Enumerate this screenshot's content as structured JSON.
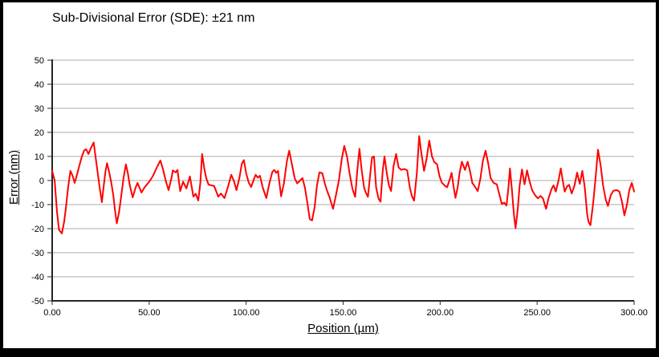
{
  "chart_data": {
    "type": "line",
    "title": "Sub-Divisional Error (SDE): ±21 nm",
    "xlabel": "Position (µm)",
    "ylabel": "Error (nm)",
    "xlim": [
      0,
      300
    ],
    "ylim": [
      -50,
      50
    ],
    "grid": "horizontal",
    "legend": "none",
    "x_tick_values": [
      0,
      50,
      100,
      150,
      200,
      250,
      300
    ],
    "x_tick_labels": [
      "0.00",
      "50.00",
      "100.00",
      "150.00",
      "200.00",
      "250.00",
      "300.00"
    ],
    "y_tick_values": [
      50,
      40,
      30,
      20,
      10,
      0,
      -10,
      -20,
      -30,
      -40,
      -50
    ],
    "y_tick_labels": [
      "50",
      "40",
      "30",
      "20",
      "10",
      "0",
      "-10",
      "-20",
      "-30",
      "-40",
      "-50"
    ],
    "colors": {
      "line": "#ff0000",
      "grid": "#ababab",
      "axis": "#262626",
      "text": "#000000",
      "background": "#ffffff",
      "frame": "#000000"
    },
    "series": [
      {
        "name": "Sub-divisional error",
        "points": [
          [
            0,
            4
          ],
          [
            1.3,
            0
          ],
          [
            2.5,
            -13
          ],
          [
            3.5,
            -20.5
          ],
          [
            5,
            -22
          ],
          [
            6.2,
            -17
          ],
          [
            7.2,
            -10.5
          ],
          [
            8.2,
            -3
          ],
          [
            9.4,
            4
          ],
          [
            10.5,
            2
          ],
          [
            11.6,
            -1
          ],
          [
            13,
            3
          ],
          [
            13.8,
            5.5
          ],
          [
            15.3,
            10
          ],
          [
            16.5,
            12.5
          ],
          [
            17.5,
            13
          ],
          [
            18.7,
            11
          ],
          [
            20,
            13.5
          ],
          [
            21.4,
            15.8
          ],
          [
            22.5,
            9
          ],
          [
            23.5,
            3
          ],
          [
            24.5,
            -3
          ],
          [
            25.6,
            -9
          ],
          [
            26.6,
            -2
          ],
          [
            27.5,
            4
          ],
          [
            28.3,
            7.2
          ],
          [
            29.5,
            3
          ],
          [
            30.5,
            -1
          ],
          [
            31.5,
            -6
          ],
          [
            32.5,
            -13
          ],
          [
            33.3,
            -17.8
          ],
          [
            34.5,
            -13
          ],
          [
            35.5,
            -7
          ],
          [
            36.8,
            1
          ],
          [
            38,
            6.7
          ],
          [
            39,
            3
          ],
          [
            40,
            -2
          ],
          [
            41.5,
            -7
          ],
          [
            43,
            -3
          ],
          [
            44,
            -1
          ],
          [
            45,
            -3
          ],
          [
            46,
            -5
          ],
          [
            47.5,
            -3
          ],
          [
            49,
            -1.5
          ],
          [
            50.5,
            0
          ],
          [
            52,
            2
          ],
          [
            54,
            5.5
          ],
          [
            55.8,
            8.3
          ],
          [
            57,
            5
          ],
          [
            58.5,
            0
          ],
          [
            60,
            -4
          ],
          [
            61.5,
            1
          ],
          [
            62.2,
            4.2
          ],
          [
            63.7,
            3.4
          ],
          [
            64.6,
            4.4
          ],
          [
            66,
            -4.4
          ],
          [
            67.5,
            -0.5
          ],
          [
            69.2,
            -3.3
          ],
          [
            71,
            1.7
          ],
          [
            72.8,
            -6.7
          ],
          [
            74,
            -5.5
          ],
          [
            75.3,
            -8.3
          ],
          [
            76.4,
            -1
          ],
          [
            77.3,
            11
          ],
          [
            78.4,
            5
          ],
          [
            79.4,
            1
          ],
          [
            80.6,
            -1.7
          ],
          [
            82,
            -2
          ],
          [
            83.5,
            -2.3
          ],
          [
            85.6,
            -6.7
          ],
          [
            87,
            -5.4
          ],
          [
            88.8,
            -7.3
          ],
          [
            90.5,
            -3
          ],
          [
            92.3,
            2.4
          ],
          [
            93.6,
            0
          ],
          [
            95,
            -4
          ],
          [
            96.5,
            1
          ],
          [
            97.8,
            7
          ],
          [
            98.8,
            8.5
          ],
          [
            100,
            3
          ],
          [
            101.3,
            -0.8
          ],
          [
            102.6,
            -2.7
          ],
          [
            104,
            0.5
          ],
          [
            104.9,
            2.4
          ],
          [
            106,
            1.2
          ],
          [
            107.1,
            2
          ],
          [
            108.6,
            -3
          ],
          [
            110.4,
            -7.3
          ],
          [
            112,
            -1
          ],
          [
            113.5,
            3.6
          ],
          [
            114.5,
            4.4
          ],
          [
            115.5,
            3.2
          ],
          [
            116.4,
            4
          ],
          [
            118,
            -6.6
          ],
          [
            119.5,
            -1
          ],
          [
            121,
            8
          ],
          [
            122.2,
            12.4
          ],
          [
            123.5,
            7
          ],
          [
            125,
            1
          ],
          [
            126.3,
            -1.2
          ],
          [
            127.8,
            0
          ],
          [
            129,
            1
          ],
          [
            130.3,
            -3
          ],
          [
            131.5,
            -9
          ],
          [
            132.8,
            -16
          ],
          [
            134,
            -16.6
          ],
          [
            135.3,
            -11
          ],
          [
            136.5,
            -2
          ],
          [
            137.8,
            3.4
          ],
          [
            139.3,
            3
          ],
          [
            140.5,
            -1
          ],
          [
            141.6,
            -4
          ],
          [
            143,
            -7
          ],
          [
            144.8,
            -11.8
          ],
          [
            146.3,
            -6
          ],
          [
            147.8,
            0
          ],
          [
            149.3,
            9
          ],
          [
            150.6,
            14.4
          ],
          [
            152,
            10
          ],
          [
            153.3,
            3
          ],
          [
            154.8,
            -3.5
          ],
          [
            156.2,
            -6.8
          ],
          [
            157.3,
            4
          ],
          [
            158.4,
            13.2
          ],
          [
            159.6,
            4
          ],
          [
            160.8,
            -3
          ],
          [
            161.8,
            -5.2
          ],
          [
            162.8,
            -6.8
          ],
          [
            164,
            3
          ],
          [
            164.9,
            9.6
          ],
          [
            165.9,
            10
          ],
          [
            167,
            -3
          ],
          [
            168.3,
            -7.6
          ],
          [
            169.3,
            -8.8
          ],
          [
            170.4,
            4
          ],
          [
            171.3,
            10
          ],
          [
            172.5,
            3
          ],
          [
            173.6,
            -2
          ],
          [
            174.7,
            -4.4
          ],
          [
            176,
            6
          ],
          [
            177.3,
            11
          ],
          [
            178.6,
            5.4
          ],
          [
            180,
            4.4
          ],
          [
            181.6,
            4.8
          ],
          [
            183,
            4.2
          ],
          [
            184.4,
            -3
          ],
          [
            185.5,
            -6.6
          ],
          [
            186.6,
            -8.4
          ],
          [
            188,
            3
          ],
          [
            189.2,
            18.5
          ],
          [
            190.4,
            11
          ],
          [
            191.7,
            4
          ],
          [
            193,
            9
          ],
          [
            194.4,
            16.6
          ],
          [
            195.8,
            10
          ],
          [
            197,
            7.6
          ],
          [
            198.4,
            6.8
          ],
          [
            199.6,
            2
          ],
          [
            200.8,
            -0.8
          ],
          [
            202.2,
            -2
          ],
          [
            203.6,
            -2.8
          ],
          [
            205,
            0.5
          ],
          [
            205.9,
            3.2
          ],
          [
            207,
            -3
          ],
          [
            207.9,
            -7.2
          ],
          [
            209,
            -3
          ],
          [
            210,
            3
          ],
          [
            211.2,
            7.8
          ],
          [
            212.8,
            4.4
          ],
          [
            214.2,
            7.8
          ],
          [
            215.4,
            4
          ],
          [
            216.6,
            -1
          ],
          [
            218,
            -2.6
          ],
          [
            219.4,
            -4.4
          ],
          [
            220.8,
            1
          ],
          [
            222,
            8
          ],
          [
            223.4,
            12.4
          ],
          [
            224.8,
            7
          ],
          [
            226,
            1
          ],
          [
            227.6,
            -1
          ],
          [
            229.2,
            -1.6
          ],
          [
            230.6,
            -6
          ],
          [
            231.8,
            -9.8
          ],
          [
            233,
            -9.2
          ],
          [
            234.2,
            -10.4
          ],
          [
            235.2,
            -3
          ],
          [
            236,
            5
          ],
          [
            237,
            -4
          ],
          [
            238,
            -14
          ],
          [
            238.9,
            -19.8
          ],
          [
            240,
            -12
          ],
          [
            241,
            -2
          ],
          [
            242.2,
            4.6
          ],
          [
            243.5,
            -1.6
          ],
          [
            244.8,
            4.2
          ],
          [
            246,
            0
          ],
          [
            247.4,
            -4
          ],
          [
            249,
            -6.2
          ],
          [
            250.4,
            -7.4
          ],
          [
            251.8,
            -6.4
          ],
          [
            253,
            -7.4
          ],
          [
            254.6,
            -11.8
          ],
          [
            256,
            -7
          ],
          [
            257.5,
            -3.4
          ],
          [
            258.5,
            -2
          ],
          [
            259.6,
            -4.6
          ],
          [
            261,
            0
          ],
          [
            262.2,
            5
          ],
          [
            263.2,
            0
          ],
          [
            264.2,
            -4.6
          ],
          [
            265.5,
            -2.4
          ],
          [
            266.5,
            -1.8
          ],
          [
            267.8,
            -5.4
          ],
          [
            269.3,
            -2
          ],
          [
            270.6,
            3.3
          ],
          [
            272,
            -1.4
          ],
          [
            273.3,
            4
          ],
          [
            274.6,
            -3
          ],
          [
            275.8,
            -14
          ],
          [
            276.5,
            -17.2
          ],
          [
            277.5,
            -18.6
          ],
          [
            278.8,
            -10
          ],
          [
            280,
            0
          ],
          [
            281.4,
            12.8
          ],
          [
            282.8,
            6
          ],
          [
            284,
            -2
          ],
          [
            285.4,
            -8
          ],
          [
            286.5,
            -10.6
          ],
          [
            288,
            -6
          ],
          [
            289.4,
            -4.2
          ],
          [
            291,
            -4
          ],
          [
            292.4,
            -4.6
          ],
          [
            293.8,
            -9
          ],
          [
            295,
            -14.5
          ],
          [
            296.3,
            -10
          ],
          [
            297.5,
            -4
          ],
          [
            298.8,
            -1
          ],
          [
            300,
            -4.6
          ]
        ]
      }
    ]
  }
}
